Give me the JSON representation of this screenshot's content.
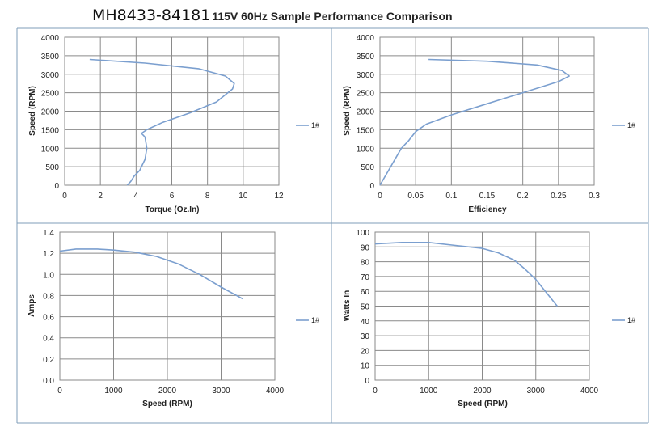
{
  "header": {
    "model": "MH8433-84181",
    "title": "115V 60Hz Sample Performance Comparison"
  },
  "colors": {
    "series": "#7b9fcf",
    "grid": "#8a8a8a",
    "frame": "#7f9db9"
  },
  "chart_data": [
    {
      "type": "line",
      "xlabel": "Torque (Oz.In)",
      "ylabel": "Speed (RPM)",
      "xlim": [
        0,
        12
      ],
      "ylim": [
        0,
        4000
      ],
      "x_ticks": [
        "0",
        "2",
        "4",
        "6",
        "8",
        "10",
        "12"
      ],
      "y_ticks": [
        "0",
        "500",
        "1000",
        "1500",
        "2000",
        "2500",
        "3000",
        "3500",
        "4000"
      ],
      "grid": true,
      "legend": "right",
      "series": [
        {
          "name": "1#",
          "x": [
            1.4,
            4.5,
            7.5,
            9.0,
            9.5,
            9.4,
            8.5,
            7.0,
            5.5,
            4.6,
            4.3,
            4.5,
            4.6,
            4.5,
            4.2,
            3.9,
            3.7,
            3.5
          ],
          "y": [
            3400,
            3300,
            3150,
            2950,
            2750,
            2600,
            2250,
            1950,
            1700,
            1500,
            1400,
            1300,
            1000,
            700,
            400,
            250,
            100,
            0
          ]
        }
      ]
    },
    {
      "type": "line",
      "xlabel": "Efficiency",
      "ylabel": "Speed (RPM)",
      "xlim": [
        0,
        0.3
      ],
      "ylim": [
        0,
        4000
      ],
      "x_ticks": [
        "0",
        "0.05",
        "0.1",
        "0.15",
        "0.2",
        "0.25",
        "0.3"
      ],
      "y_ticks": [
        "0",
        "500",
        "1000",
        "1500",
        "2000",
        "2500",
        "3000",
        "3500",
        "4000"
      ],
      "grid": true,
      "legend": "right",
      "series": [
        {
          "name": "1#",
          "x": [
            0.068,
            0.15,
            0.22,
            0.255,
            0.265,
            0.25,
            0.2,
            0.15,
            0.1,
            0.065,
            0.05,
            0.04,
            0.03,
            0.015,
            0.0
          ],
          "y": [
            3400,
            3350,
            3250,
            3100,
            2950,
            2800,
            2500,
            2200,
            1900,
            1650,
            1450,
            1200,
            1000,
            500,
            0
          ]
        }
      ]
    },
    {
      "type": "line",
      "xlabel": "Speed (RPM)",
      "ylabel": "Amps",
      "xlim": [
        0,
        4000
      ],
      "ylim": [
        0,
        1.4
      ],
      "x_ticks": [
        "0",
        "1000",
        "2000",
        "3000",
        "4000"
      ],
      "y_ticks": [
        "0.0",
        "0.2",
        "0.4",
        "0.6",
        "0.8",
        "1.0",
        "1.2",
        "1.4"
      ],
      "grid": true,
      "legend": "right",
      "series": [
        {
          "name": "1#",
          "x": [
            0,
            300,
            700,
            1000,
            1400,
            1800,
            2200,
            2600,
            3000,
            3400
          ],
          "y": [
            1.22,
            1.24,
            1.24,
            1.23,
            1.21,
            1.17,
            1.1,
            1.0,
            0.88,
            0.77
          ]
        }
      ]
    },
    {
      "type": "line",
      "xlabel": "Speed (RPM)",
      "ylabel": "Watts In",
      "xlim": [
        0,
        4000
      ],
      "ylim": [
        0,
        100
      ],
      "x_ticks": [
        "0",
        "1000",
        "2000",
        "3000",
        "4000"
      ],
      "y_ticks": [
        "0",
        "10",
        "20",
        "30",
        "40",
        "50",
        "60",
        "70",
        "80",
        "90",
        "100"
      ],
      "grid": true,
      "legend": "right",
      "series": [
        {
          "name": "1#",
          "x": [
            0,
            500,
            1000,
            1500,
            2000,
            2300,
            2600,
            2800,
            3000,
            3200,
            3400
          ],
          "y": [
            92,
            93,
            93,
            91,
            89,
            86,
            81,
            75,
            68,
            59,
            50
          ]
        }
      ]
    }
  ]
}
